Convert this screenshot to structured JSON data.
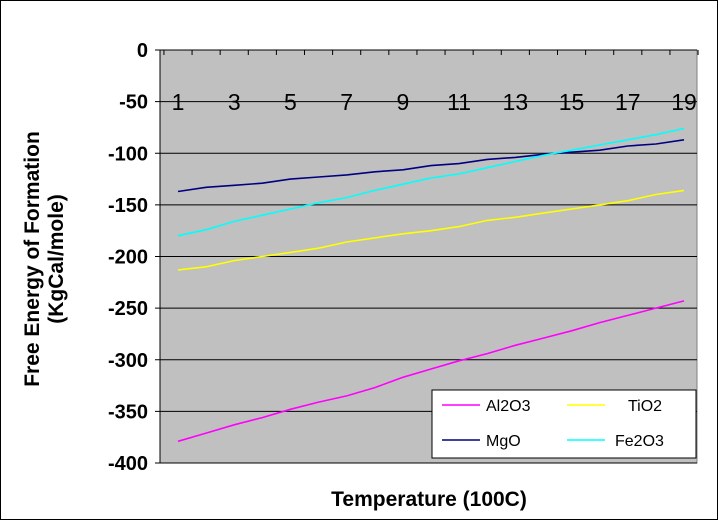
{
  "chart_data": {
    "type": "line",
    "title": "",
    "xlabel": "Temperature (100C)",
    "ylabel": [
      "Free Energy of Formation",
      "(KgCal/mole)"
    ],
    "x": [
      1,
      2,
      3,
      4,
      5,
      6,
      7,
      8,
      9,
      10,
      11,
      12,
      13,
      14,
      15,
      16,
      17,
      18,
      19
    ],
    "x_tick_labels": [
      "1",
      "3",
      "5",
      "7",
      "9",
      "11",
      "13",
      "15",
      "17",
      "19"
    ],
    "ylim": [
      -400,
      0
    ],
    "y_ticks": [
      0,
      -50,
      -100,
      -150,
      -200,
      -250,
      -300,
      -350,
      -400
    ],
    "y_tick_labels": [
      "0",
      "-50",
      "-100",
      "-150",
      "-200",
      "-250",
      "-300",
      "-350",
      "-400"
    ],
    "grid": "horizontal",
    "plot_background": "#c0c0c0",
    "legend_position": "bottom-right",
    "series": [
      {
        "name": "Al2O3",
        "color": "#ff00ff",
        "values": [
          -379,
          -371,
          -363,
          -356,
          -348,
          -341,
          -335,
          -327,
          -317,
          -309,
          -301,
          -294,
          -286,
          -279,
          -272,
          -264,
          -257,
          -250,
          -243
        ]
      },
      {
        "name": "TiO2",
        "color": "#ffff00",
        "values": [
          -213,
          -210,
          -204,
          -200,
          -196,
          -192,
          -186,
          -182,
          -178,
          -175,
          -171,
          -165,
          -162,
          -158,
          -154,
          -150,
          -146,
          -140,
          -136
        ]
      },
      {
        "name": "MgO",
        "color": "#000080",
        "values": [
          -137,
          -133,
          -131,
          -129,
          -125,
          -123,
          -121,
          -118,
          -116,
          -112,
          -110,
          -106,
          -104,
          -101,
          -99,
          -97,
          -93,
          -91,
          -87
        ]
      },
      {
        "name": "Fe2O3",
        "color": "#00ffff",
        "values": [
          -180,
          -174,
          -166,
          -160,
          -154,
          -148,
          -143,
          -136,
          -130,
          -124,
          -120,
          -114,
          -108,
          -102,
          -97,
          -92,
          -87,
          -82,
          -76
        ]
      }
    ]
  }
}
